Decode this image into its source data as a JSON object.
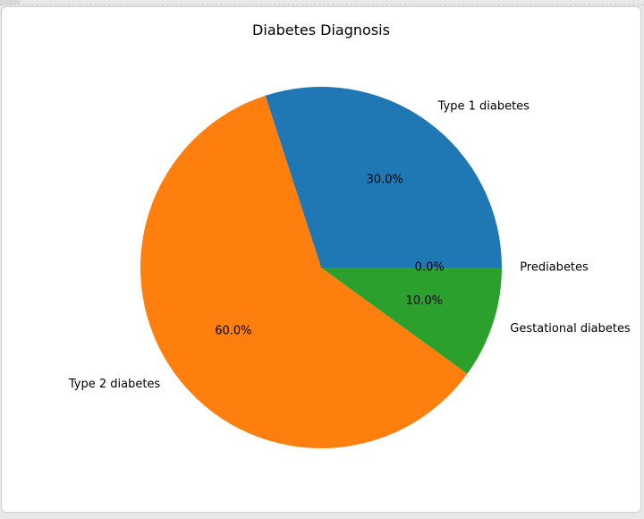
{
  "chart_data": {
    "type": "pie",
    "title": "Diabetes Diagnosis",
    "categories": [
      "Type 1 diabetes",
      "Type 2 diabetes",
      "Gestational diabetes",
      "Prediabetes"
    ],
    "values": [
      30,
      60,
      10,
      0
    ],
    "percent_labels": [
      "30.0%",
      "60.0%",
      "10.0%",
      "0.0%"
    ],
    "colors": [
      "#1f77b4",
      "#ff7f0e",
      "#2ca02c",
      "#d62728"
    ],
    "start_angle_deg": 0,
    "direction": "counterclockwise",
    "legend": "none"
  }
}
